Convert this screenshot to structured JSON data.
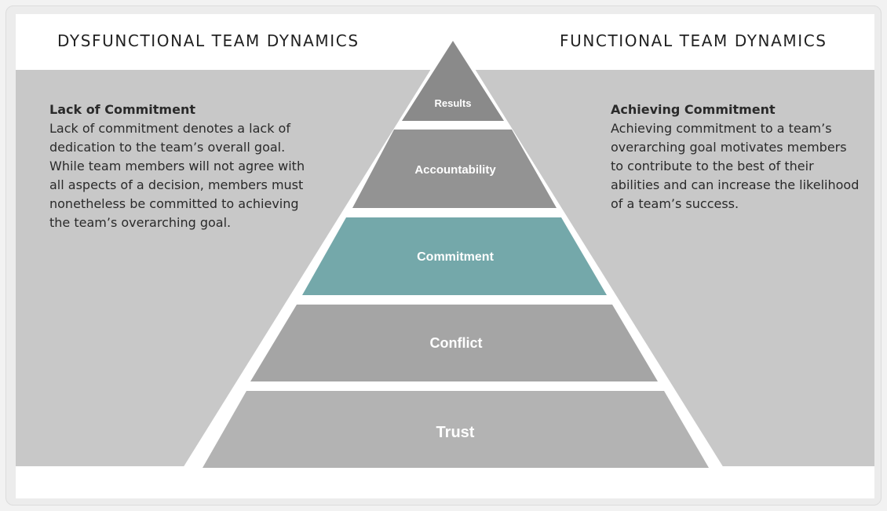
{
  "headings": {
    "left": "DYSFUNCTIONAL TEAM DYNAMICS",
    "right": "FUNCTIONAL TEAM DYNAMICS"
  },
  "left_panel": {
    "title": "Lack of Commitment",
    "body": "Lack of commitment denotes a lack of dedication to the team’s overall goal. While team members will not agree with all aspects of a decision, members must nonetheless be committed to achieving the team’s overarching goal."
  },
  "right_panel": {
    "title": "Achieving Commitment",
    "body": "Achieving commitment to a team’s overarching goal motivates members to contribute to the best of their abilities and can increase the likelihood of a team’s success."
  },
  "pyramid": {
    "tiers": [
      {
        "label": "Results",
        "color": "#8a8a8a",
        "highlight": false
      },
      {
        "label": "Accountability",
        "color": "#939393",
        "highlight": false
      },
      {
        "label": "Commitment",
        "color": "#74a8aa",
        "highlight": true
      },
      {
        "label": "Conflict",
        "color": "#a5a5a5",
        "highlight": false
      },
      {
        "label": "Trust",
        "color": "#b3b3b3",
        "highlight": false
      }
    ]
  },
  "colors": {
    "background_band": "#c8c8c8",
    "highlight": "#74a8aa"
  }
}
